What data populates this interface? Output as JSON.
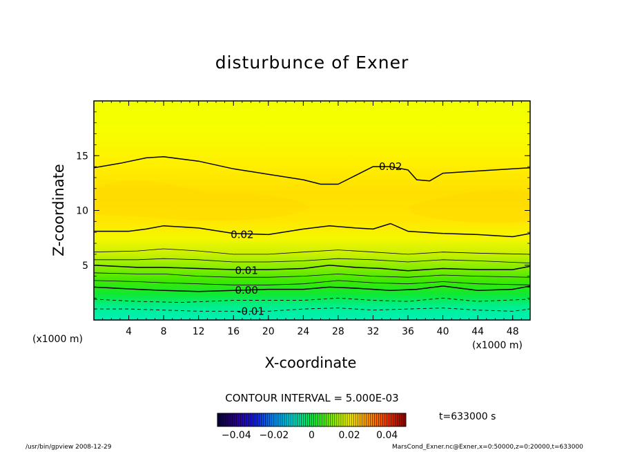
{
  "chart_data": {
    "type": "contour",
    "title": "disturbunce of Exner",
    "xlabel": "X-coordinate",
    "ylabel": "Z-coordinate",
    "x_unit": "(x1000 m)",
    "xlim": [
      0,
      50
    ],
    "ylim": [
      0,
      20
    ],
    "x_ticks": [
      "4",
      "8",
      "12",
      "16",
      "20",
      "24",
      "28",
      "32",
      "36",
      "40",
      "44",
      "48"
    ],
    "y_ticks": [
      "5",
      "10",
      "15"
    ],
    "contour_interval_text": "CONTOUR INTERVAL = 5.000E-03",
    "contour_labels": [
      {
        "text": "0.02",
        "x": 34,
        "z": 14
      },
      {
        "text": "0.02",
        "x": 17,
        "z": 7.8
      },
      {
        "text": "0.01",
        "x": 17.5,
        "z": 4.5
      },
      {
        "text": "0.00",
        "x": 17.5,
        "z": 2.7
      },
      {
        "text": "-0.01",
        "x": 18,
        "z": 0.8
      }
    ],
    "colorbar": {
      "range": [
        -0.05,
        0.05
      ],
      "tick_labels": [
        "-0.04",
        "-0.02",
        "0",
        "0.02",
        "0.04"
      ],
      "tick_values": [
        -0.04,
        -0.02,
        0,
        0.02,
        0.04
      ]
    },
    "time_label": "t=633000 s"
  },
  "footer": {
    "left": "/usr/bin/gpview   2008-12-29",
    "right": "MarsCond_Exner.nc@Exner,x=0:50000,z=0:20000,t=633000"
  }
}
